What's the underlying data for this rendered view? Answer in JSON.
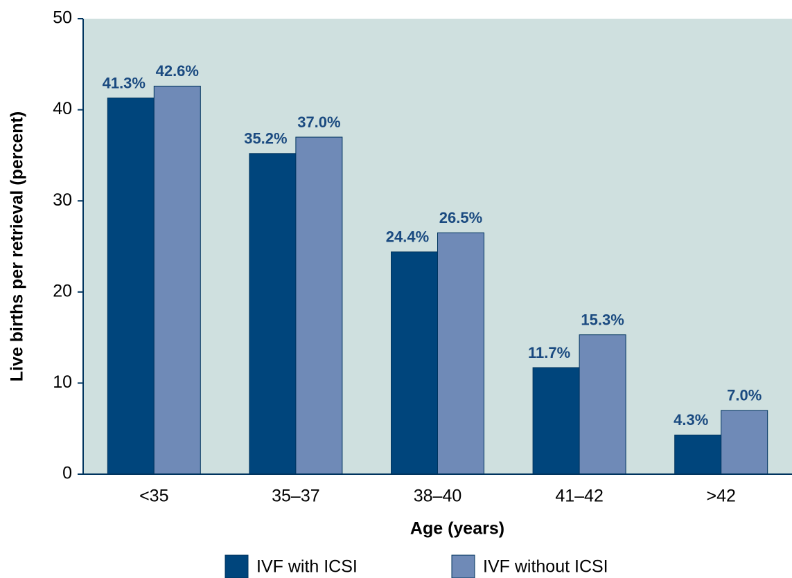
{
  "chart_data": {
    "type": "bar",
    "x_label": "Age (years)",
    "y_label": "Live births per retrieval (percent)",
    "categories": [
      "<35",
      "35–37",
      "38–40",
      "41–42",
      ">42"
    ],
    "series": [
      {
        "name": "IVF with ICSI",
        "color": "#00457c",
        "values": [
          41.3,
          35.2,
          24.4,
          11.7,
          4.3
        ],
        "value_labels": [
          "41.3%",
          "35.2%",
          "24.4%",
          "11.7%",
          "4.3%"
        ]
      },
      {
        "name": "IVF without ICSI",
        "color": "#6f8ab7",
        "values": [
          42.6,
          37.0,
          26.5,
          15.3,
          7.0
        ],
        "value_labels": [
          "42.6%",
          "37.0%",
          "26.5%",
          "15.3%",
          "7.0%"
        ]
      }
    ],
    "ylim": [
      0,
      50
    ],
    "yticks": [
      0,
      10,
      20,
      30,
      40,
      50
    ],
    "plot_background": "#cfe0df"
  }
}
